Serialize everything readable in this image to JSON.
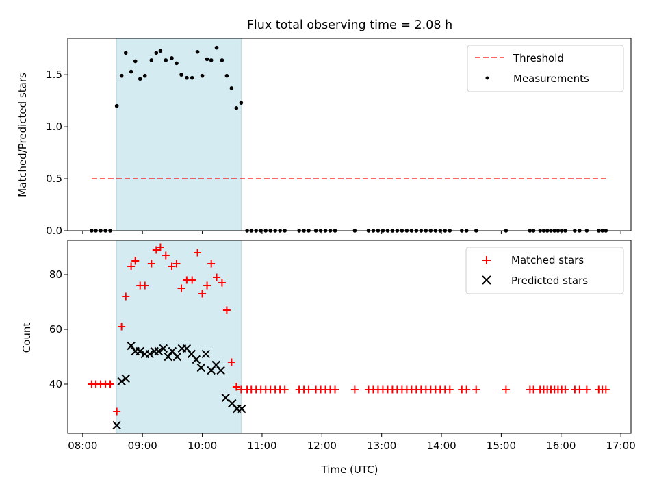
{
  "chart_data": {
    "type": "scatter",
    "title": "Flux total observing time = 2.08 h",
    "xlabel": "Time (UTC)",
    "x_unit": "hours (UTC)",
    "xlim": [
      7.75,
      17.17
    ],
    "xticks": [
      {
        "value": 8,
        "label": "08:00"
      },
      {
        "value": 9,
        "label": "09:00"
      },
      {
        "value": 10,
        "label": "10:00"
      },
      {
        "value": 11,
        "label": "11:00"
      },
      {
        "value": 12,
        "label": "12:00"
      },
      {
        "value": 13,
        "label": "13:00"
      },
      {
        "value": 14,
        "label": "14:00"
      },
      {
        "value": 15,
        "label": "15:00"
      },
      {
        "value": 16,
        "label": "16:00"
      },
      {
        "value": 17,
        "label": "17:00"
      }
    ],
    "highlight": {
      "x_start": 8.57,
      "x_end": 10.65,
      "color": "#add8e6"
    },
    "panels": [
      {
        "id": "top",
        "ylabel": "Matched/Predicted stars",
        "ylim": [
          0,
          1.85
        ],
        "yticks": [
          {
            "value": 0,
            "label": "0.0"
          },
          {
            "value": 0.5,
            "label": "0.5"
          },
          {
            "value": 1.0,
            "label": "1.0"
          },
          {
            "value": 1.5,
            "label": "1.5"
          }
        ],
        "threshold": {
          "name": "Threshold",
          "y": 0.5,
          "x_start": 8.15,
          "x_end": 16.75,
          "color": "#ff0000"
        },
        "series": [
          {
            "name": "Measurements",
            "marker": "dot",
            "color": "#000000",
            "x": [
              8.15,
              8.22,
              8.3,
              8.38,
              8.46,
              8.57,
              8.65,
              8.72,
              8.81,
              8.88,
              8.96,
              9.04,
              9.15,
              9.23,
              9.3,
              9.39,
              9.49,
              9.57,
              9.65,
              9.74,
              9.83,
              9.92,
              10.0,
              10.08,
              10.15,
              10.24,
              10.33,
              10.41,
              10.49,
              10.57,
              10.65,
              10.75,
              10.82,
              10.9,
              10.98,
              11.06,
              11.14,
              11.22,
              11.3,
              11.38,
              11.62,
              11.7,
              11.78,
              11.9,
              11.98,
              12.06,
              12.14,
              12.22,
              12.55,
              12.78,
              12.86,
              12.94,
              13.02,
              13.1,
              13.18,
              13.26,
              13.34,
              13.42,
              13.5,
              13.58,
              13.66,
              13.74,
              13.82,
              13.9,
              13.98,
              14.06,
              14.14,
              14.34,
              14.42,
              14.58,
              15.08,
              15.48,
              15.54,
              15.65,
              15.71,
              15.77,
              15.83,
              15.89,
              15.95,
              16.01,
              16.07,
              16.23,
              16.31,
              16.43,
              16.63,
              16.69,
              16.75
            ],
            "y": [
              0,
              0,
              0,
              0,
              0,
              1.2,
              1.49,
              1.71,
              1.53,
              1.63,
              1.46,
              1.49,
              1.64,
              1.71,
              1.73,
              1.64,
              1.66,
              1.61,
              1.5,
              1.47,
              1.47,
              1.72,
              1.49,
              1.65,
              1.64,
              1.76,
              1.64,
              1.49,
              1.37,
              1.18,
              1.23,
              0,
              0,
              0,
              0,
              0,
              0,
              0,
              0,
              0,
              0,
              0,
              0,
              0,
              0,
              0,
              0,
              0,
              0,
              0,
              0,
              0,
              0,
              0,
              0,
              0,
              0,
              0,
              0,
              0,
              0,
              0,
              0,
              0,
              0,
              0,
              0,
              0,
              0,
              0,
              0,
              0,
              0,
              0,
              0,
              0,
              0,
              0,
              0,
              0,
              0,
              0,
              0,
              0,
              0,
              0,
              0
            ]
          }
        ],
        "legend": {
          "placement": "upper right",
          "entries": [
            "Threshold",
            "Measurements"
          ]
        }
      },
      {
        "id": "bottom",
        "ylabel": "Count",
        "ylim": [
          22,
          92.5
        ],
        "yticks": [
          {
            "value": 40,
            "label": "40"
          },
          {
            "value": 60,
            "label": "60"
          },
          {
            "value": 80,
            "label": "80"
          }
        ],
        "series": [
          {
            "name": "Matched stars",
            "marker": "plus",
            "color": "#ff0000",
            "x": [
              8.15,
              8.22,
              8.3,
              8.38,
              8.46,
              8.57,
              8.65,
              8.72,
              8.81,
              8.88,
              8.96,
              9.04,
              9.15,
              9.23,
              9.3,
              9.39,
              9.49,
              9.57,
              9.65,
              9.74,
              9.83,
              9.92,
              10.0,
              10.08,
              10.15,
              10.24,
              10.33,
              10.41,
              10.49,
              10.57,
              10.65,
              10.75,
              10.82,
              10.9,
              10.98,
              11.06,
              11.14,
              11.22,
              11.3,
              11.38,
              11.62,
              11.7,
              11.78,
              11.9,
              11.98,
              12.06,
              12.14,
              12.22,
              12.55,
              12.78,
              12.86,
              12.94,
              13.02,
              13.1,
              13.18,
              13.26,
              13.34,
              13.42,
              13.5,
              13.58,
              13.66,
              13.74,
              13.82,
              13.9,
              13.98,
              14.06,
              14.14,
              14.34,
              14.42,
              14.58,
              15.08,
              15.48,
              15.54,
              15.65,
              15.71,
              15.77,
              15.83,
              15.89,
              15.95,
              16.01,
              16.07,
              16.23,
              16.31,
              16.43,
              16.63,
              16.69,
              16.75
            ],
            "y": [
              40,
              40,
              40,
              40,
              40,
              30,
              61,
              72,
              83,
              85,
              76,
              76,
              84,
              89,
              90,
              87,
              83,
              84,
              75,
              78,
              78,
              88,
              73,
              76,
              84,
              79,
              77,
              67,
              48,
              39,
              38,
              38,
              38,
              38,
              38,
              38,
              38,
              38,
              38,
              38,
              38,
              38,
              38,
              38,
              38,
              38,
              38,
              38,
              38,
              38,
              38,
              38,
              38,
              38,
              38,
              38,
              38,
              38,
              38,
              38,
              38,
              38,
              38,
              38,
              38,
              38,
              38,
              38,
              38,
              38,
              38,
              38,
              38,
              38,
              38,
              38,
              38,
              38,
              38,
              38,
              38,
              38,
              38,
              38,
              38,
              38,
              38
            ]
          },
          {
            "name": "Predicted stars",
            "marker": "x",
            "color": "#000000",
            "x": [
              8.57,
              8.65,
              8.72,
              8.81,
              8.88,
              8.96,
              9.04,
              9.12,
              9.2,
              9.27,
              9.35,
              9.43,
              9.5,
              9.58,
              9.66,
              9.74,
              9.82,
              9.9,
              9.98,
              10.06,
              10.15,
              10.23,
              10.31,
              10.39,
              10.5,
              10.58,
              10.66
            ],
            "y": [
              25,
              41,
              42,
              54,
              52,
              52,
              51,
              51,
              52,
              52,
              53,
              50,
              52,
              50,
              53,
              53,
              51,
              49,
              46,
              51,
              45,
              47,
              45,
              35,
              33,
              31,
              31
            ]
          }
        ],
        "legend": {
          "placement": "upper right",
          "entries": [
            "Matched stars",
            "Predicted stars"
          ]
        }
      }
    ]
  }
}
